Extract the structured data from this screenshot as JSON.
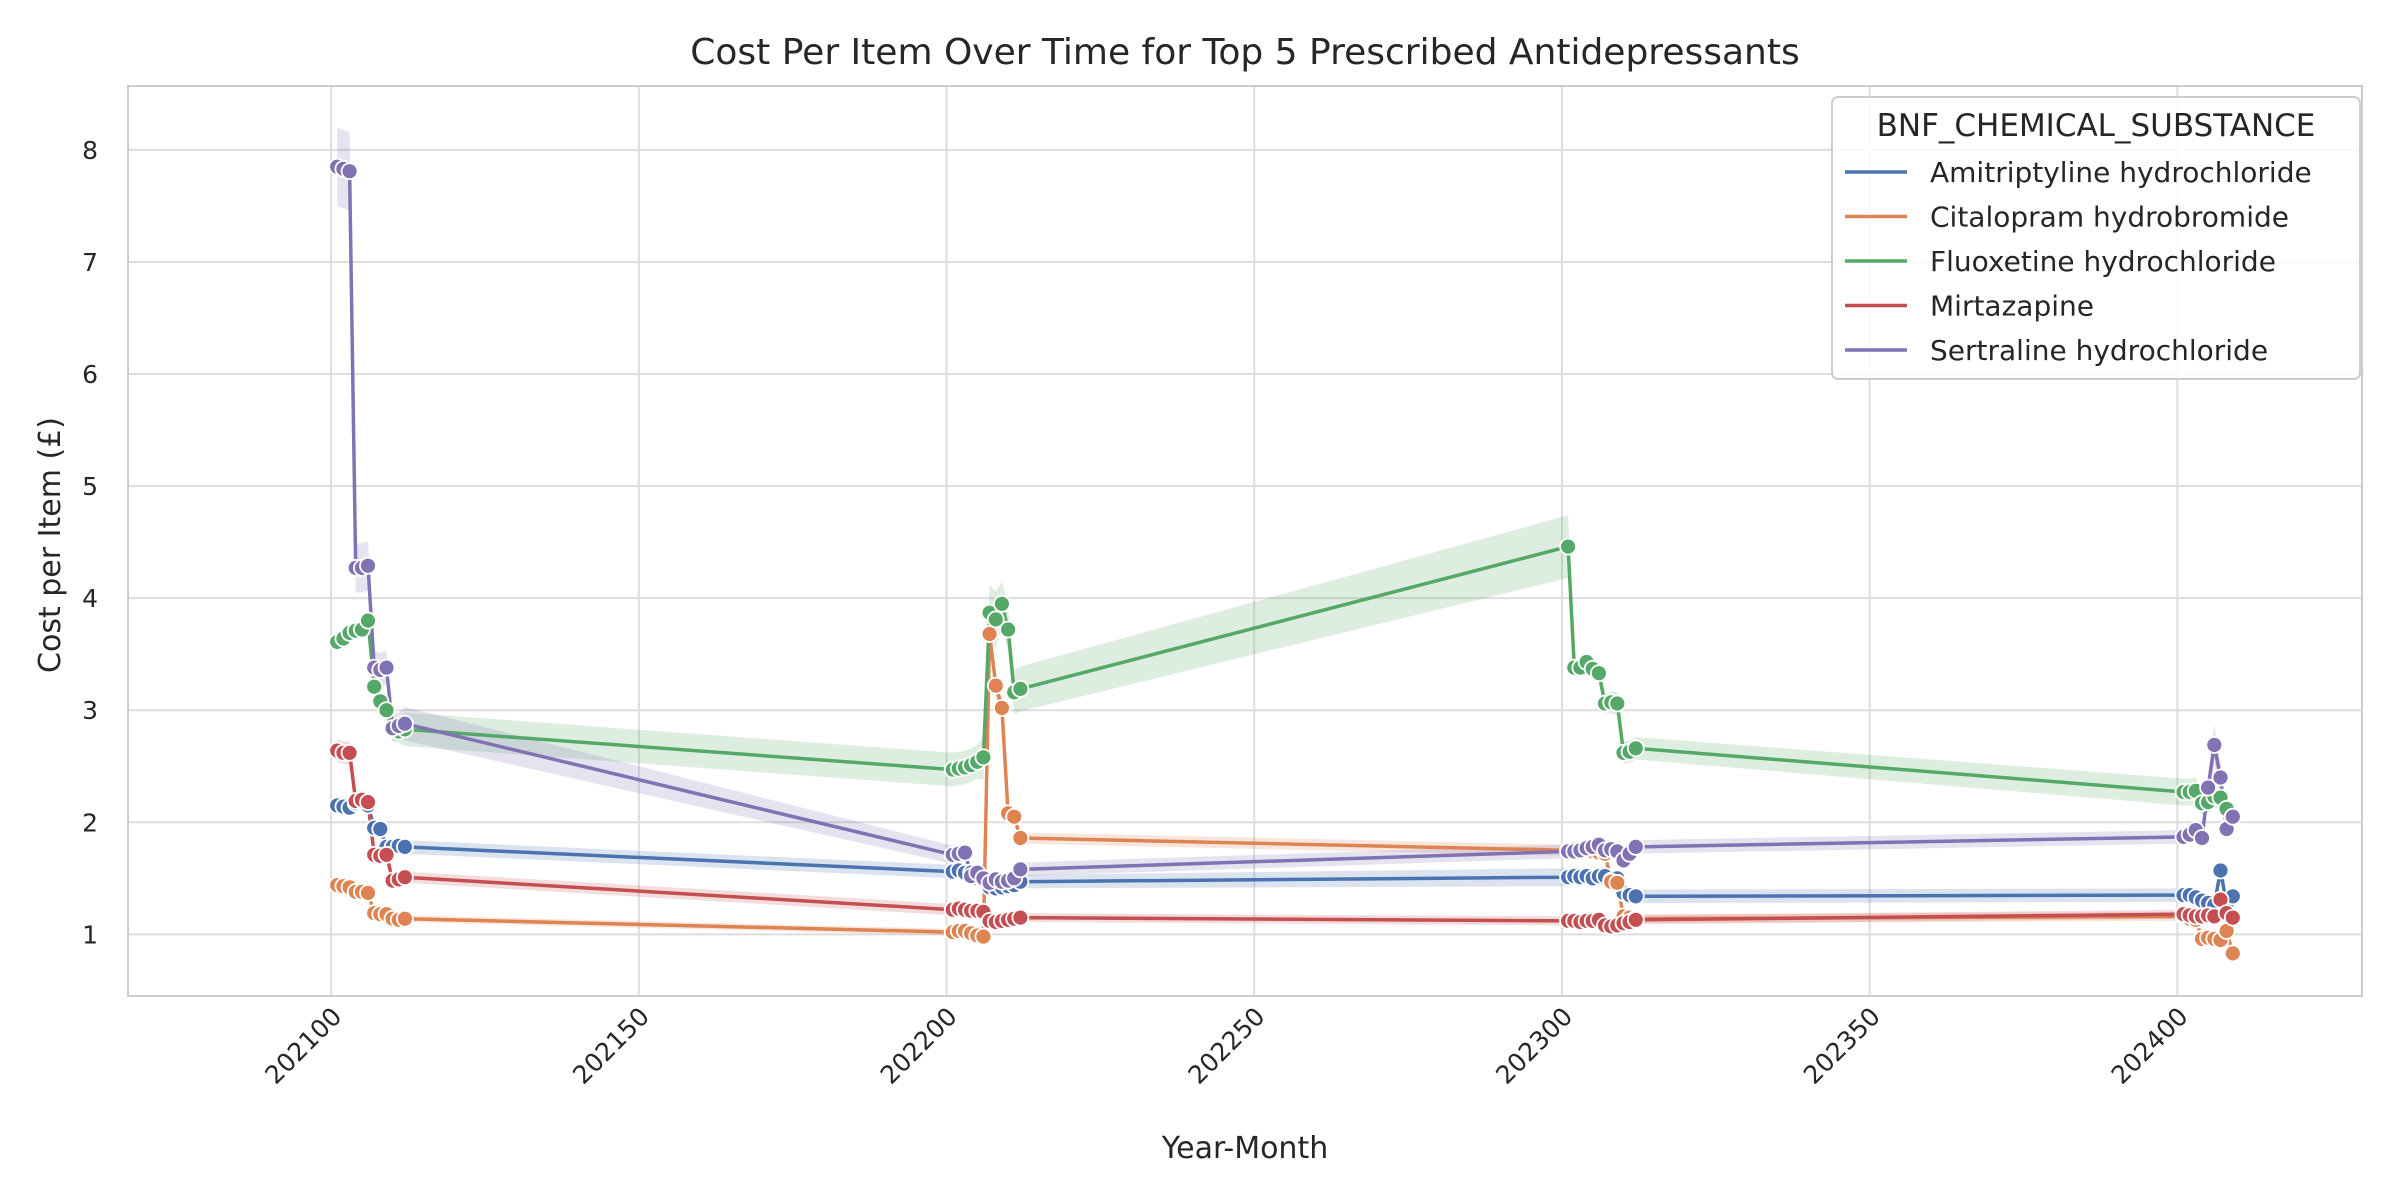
{
  "chart_data": {
    "type": "line",
    "title": "Cost Per Item Over Time for Top 5 Prescribed Antidepressants",
    "xlabel": "Year-Month",
    "ylabel": "Cost per Item (£)",
    "xlim": [
      202067,
      202430
    ],
    "ylim": [
      0.45,
      8.57
    ],
    "x_ticks": [
      202100,
      202150,
      202200,
      202250,
      202300,
      202350,
      202400
    ],
    "y_ticks": [
      1,
      2,
      3,
      4,
      5,
      6,
      7,
      8
    ],
    "grid": true,
    "legend": {
      "title": "BNF_CHEMICAL_SUBSTANCE",
      "position": "top-right"
    },
    "series": [
      {
        "name": "Amitriptyline hydrochloride",
        "color": "#4c72b0",
        "x": [
          202101,
          202102,
          202103,
          202104,
          202105,
          202106,
          202107,
          202108,
          202109,
          202110,
          202111,
          202112,
          202201,
          202202,
          202203,
          202204,
          202205,
          202206,
          202207,
          202208,
          202209,
          202210,
          202211,
          202212,
          202301,
          202302,
          202303,
          202304,
          202305,
          202306,
          202307,
          202308,
          202309,
          202310,
          202311,
          202312,
          202401,
          202402,
          202403,
          202404,
          202405,
          202406,
          202407,
          202408,
          202409
        ],
        "y": [
          2.15,
          2.14,
          2.13,
          2.17,
          2.18,
          2.15,
          1.95,
          1.94,
          1.78,
          1.78,
          1.79,
          1.78,
          1.56,
          1.57,
          1.55,
          1.55,
          1.5,
          1.48,
          1.42,
          1.41,
          1.42,
          1.43,
          1.44,
          1.47,
          1.51,
          1.52,
          1.51,
          1.52,
          1.5,
          1.52,
          1.52,
          1.48,
          1.5,
          1.37,
          1.35,
          1.34,
          1.35,
          1.35,
          1.33,
          1.3,
          1.28,
          1.26,
          1.57,
          1.27,
          1.34
        ],
        "ci": [
          0.04,
          0.04,
          0.04,
          0.04,
          0.04,
          0.04,
          0.06,
          0.06,
          0.06,
          0.06,
          0.06,
          0.06,
          0.06,
          0.06,
          0.06,
          0.06,
          0.06,
          0.06,
          0.06,
          0.06,
          0.06,
          0.06,
          0.06,
          0.06,
          0.08,
          0.08,
          0.08,
          0.08,
          0.08,
          0.08,
          0.08,
          0.06,
          0.06,
          0.06,
          0.06,
          0.06,
          0.06,
          0.06,
          0.06,
          0.06,
          0.06,
          0.06,
          0.06,
          0.06,
          0.06
        ]
      },
      {
        "name": "Citalopram hydrobromide",
        "color": "#dd8452",
        "x": [
          202101,
          202102,
          202103,
          202104,
          202105,
          202106,
          202107,
          202108,
          202109,
          202110,
          202111,
          202112,
          202201,
          202202,
          202203,
          202204,
          202205,
          202206,
          202207,
          202208,
          202209,
          202210,
          202211,
          202212,
          202301,
          202302,
          202303,
          202304,
          202305,
          202306,
          202307,
          202308,
          202309,
          202310,
          202311,
          202312,
          202401,
          202402,
          202403,
          202404,
          202405,
          202406,
          202407,
          202408,
          202409
        ],
        "y": [
          1.44,
          1.43,
          1.42,
          1.38,
          1.38,
          1.37,
          1.19,
          1.18,
          1.18,
          1.14,
          1.13,
          1.14,
          1.02,
          1.03,
          1.03,
          1.01,
          0.99,
          0.98,
          3.68,
          3.22,
          3.02,
          2.08,
          2.05,
          1.86,
          1.75,
          1.76,
          1.76,
          1.75,
          1.74,
          1.73,
          1.72,
          1.47,
          1.46,
          1.16,
          1.15,
          1.14,
          1.16,
          1.14,
          1.13,
          0.96,
          0.97,
          0.96,
          0.95,
          1.03,
          0.83
        ],
        "ci": [
          0.03,
          0.03,
          0.03,
          0.03,
          0.03,
          0.03,
          0.03,
          0.03,
          0.03,
          0.03,
          0.03,
          0.03,
          0.03,
          0.03,
          0.03,
          0.03,
          0.03,
          0.03,
          0.12,
          0.12,
          0.1,
          0.1,
          0.06,
          0.05,
          0.05,
          0.05,
          0.05,
          0.05,
          0.05,
          0.05,
          0.05,
          0.05,
          0.05,
          0.04,
          0.04,
          0.04,
          0.04,
          0.04,
          0.04,
          0.04,
          0.04,
          0.04,
          0.04,
          0.04,
          0.04
        ]
      },
      {
        "name": "Fluoxetine hydrochloride",
        "color": "#55a868",
        "x": [
          202101,
          202102,
          202103,
          202104,
          202105,
          202106,
          202107,
          202108,
          202109,
          202110,
          202111,
          202112,
          202201,
          202202,
          202203,
          202204,
          202205,
          202206,
          202207,
          202208,
          202209,
          202210,
          202211,
          202212,
          202301,
          202302,
          202303,
          202304,
          202305,
          202306,
          202307,
          202308,
          202309,
          202310,
          202311,
          202312,
          202401,
          202402,
          202403,
          202404,
          202405,
          202406,
          202407,
          202408,
          202409
        ],
        "y": [
          3.61,
          3.64,
          3.69,
          3.71,
          3.72,
          3.8,
          3.21,
          3.08,
          3.0,
          2.83,
          2.81,
          2.83,
          2.47,
          2.48,
          2.49,
          2.51,
          2.54,
          2.58,
          3.87,
          3.81,
          3.95,
          3.72,
          3.16,
          3.19,
          4.46,
          3.38,
          3.38,
          3.43,
          3.37,
          3.33,
          3.06,
          3.07,
          3.06,
          2.62,
          2.63,
          2.66,
          2.27,
          2.27,
          2.28,
          2.17,
          2.18,
          2.23,
          2.22,
          2.12,
          2.04
        ],
        "ci": [
          0.07,
          0.07,
          0.07,
          0.07,
          0.07,
          0.07,
          0.1,
          0.1,
          0.1,
          0.1,
          0.1,
          0.15,
          0.15,
          0.15,
          0.15,
          0.15,
          0.15,
          0.2,
          0.25,
          0.25,
          0.2,
          0.2,
          0.2,
          0.2,
          0.28,
          0.08,
          0.08,
          0.08,
          0.08,
          0.08,
          0.08,
          0.1,
          0.1,
          0.1,
          0.1,
          0.1,
          0.12,
          0.12,
          0.12,
          0.1,
          0.1,
          0.1,
          0.1,
          0.1,
          0.1
        ]
      },
      {
        "name": "Mirtazapine",
        "color": "#c44e52",
        "x": [
          202101,
          202102,
          202103,
          202104,
          202105,
          202106,
          202107,
          202108,
          202109,
          202110,
          202111,
          202112,
          202201,
          202202,
          202203,
          202204,
          202205,
          202206,
          202207,
          202208,
          202209,
          202210,
          202211,
          202212,
          202301,
          202302,
          202303,
          202304,
          202305,
          202306,
          202307,
          202308,
          202309,
          202310,
          202311,
          202312,
          202401,
          202402,
          202403,
          202404,
          202405,
          202406,
          202407,
          202408,
          202409
        ],
        "y": [
          2.64,
          2.62,
          2.62,
          2.19,
          2.2,
          2.18,
          1.71,
          1.7,
          1.71,
          1.48,
          1.49,
          1.51,
          1.22,
          1.23,
          1.22,
          1.21,
          1.21,
          1.2,
          1.12,
          1.11,
          1.12,
          1.13,
          1.14,
          1.15,
          1.12,
          1.12,
          1.11,
          1.12,
          1.12,
          1.13,
          1.08,
          1.07,
          1.08,
          1.1,
          1.11,
          1.13,
          1.18,
          1.17,
          1.16,
          1.16,
          1.17,
          1.16,
          1.31,
          1.19,
          1.15
        ],
        "ci": [
          0.1,
          0.1,
          0.1,
          0.06,
          0.06,
          0.06,
          0.05,
          0.05,
          0.05,
          0.05,
          0.05,
          0.05,
          0.05,
          0.05,
          0.05,
          0.05,
          0.05,
          0.05,
          0.04,
          0.04,
          0.04,
          0.04,
          0.04,
          0.04,
          0.04,
          0.04,
          0.04,
          0.04,
          0.04,
          0.04,
          0.04,
          0.04,
          0.04,
          0.04,
          0.04,
          0.04,
          0.04,
          0.04,
          0.04,
          0.04,
          0.04,
          0.04,
          0.04,
          0.04,
          0.04
        ]
      },
      {
        "name": "Sertraline hydrochloride",
        "color": "#8172b3",
        "x": [
          202101,
          202102,
          202103,
          202104,
          202105,
          202106,
          202107,
          202108,
          202109,
          202110,
          202111,
          202112,
          202201,
          202202,
          202203,
          202204,
          202205,
          202206,
          202207,
          202208,
          202209,
          202210,
          202211,
          202212,
          202301,
          202302,
          202303,
          202304,
          202305,
          202306,
          202307,
          202308,
          202309,
          202310,
          202311,
          202312,
          202401,
          202402,
          202403,
          202404,
          202405,
          202406,
          202407,
          202408,
          202409
        ],
        "y": [
          7.85,
          7.83,
          7.81,
          4.27,
          4.27,
          4.29,
          3.38,
          3.36,
          3.38,
          2.84,
          2.86,
          2.88,
          1.71,
          1.72,
          1.73,
          1.52,
          1.55,
          1.5,
          1.46,
          1.49,
          1.47,
          1.48,
          1.5,
          1.58,
          1.74,
          1.74,
          1.75,
          1.77,
          1.78,
          1.8,
          1.75,
          1.76,
          1.74,
          1.66,
          1.72,
          1.78,
          1.87,
          1.89,
          1.93,
          1.86,
          2.31,
          2.69,
          2.4,
          1.94,
          2.05
        ],
        "ci": [
          0.35,
          0.35,
          0.35,
          0.22,
          0.22,
          0.22,
          0.15,
          0.15,
          0.15,
          0.12,
          0.12,
          0.15,
          0.08,
          0.08,
          0.08,
          0.06,
          0.06,
          0.06,
          0.06,
          0.06,
          0.06,
          0.06,
          0.06,
          0.06,
          0.06,
          0.06,
          0.06,
          0.06,
          0.06,
          0.06,
          0.06,
          0.06,
          0.06,
          0.06,
          0.06,
          0.06,
          0.06,
          0.06,
          0.06,
          0.06,
          0.1,
          0.18,
          0.12,
          0.1,
          0.08
        ]
      }
    ]
  }
}
